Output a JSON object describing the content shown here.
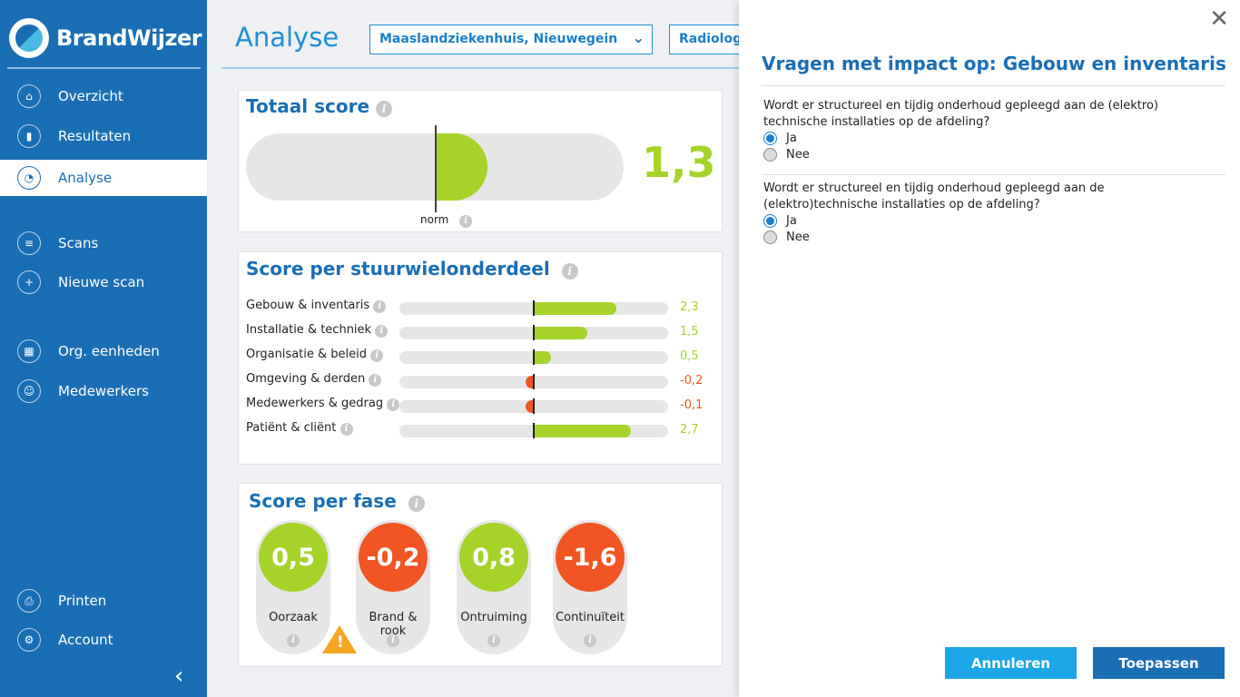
{
  "app": {
    "name": "BrandWijzer"
  },
  "sidebar": {
    "items": [
      {
        "label": "Overzicht",
        "icon": "home-icon"
      },
      {
        "label": "Resultaten",
        "icon": "bar-chart-icon"
      },
      {
        "label": "Analyse",
        "icon": "analysis-icon",
        "active": true
      },
      {
        "label": "Scans",
        "icon": "list-icon"
      },
      {
        "label": "Nieuwe scan",
        "icon": "plus-icon"
      },
      {
        "label": "Org. eenheden",
        "icon": "org-chart-icon"
      },
      {
        "label": "Medewerkers",
        "icon": "users-icon"
      },
      {
        "label": "Printen",
        "icon": "printer-icon"
      },
      {
        "label": "Account",
        "icon": "gear-icon"
      }
    ]
  },
  "header": {
    "title": "Analyse",
    "location_select": "Maaslandziekenhuis, Nieuwegein",
    "department_select": "Radiologie"
  },
  "totaal": {
    "title": "Totaal score",
    "value": "1,3",
    "norm_label": "norm",
    "bar_fraction": 0.64
  },
  "segments": {
    "title": "Score per stuurwielonderdeel",
    "rows": [
      {
        "label": "Gebouw & inventaris",
        "value": "2,3",
        "score": 2.3
      },
      {
        "label": "Installatie & techniek",
        "value": "1,5",
        "score": 1.5
      },
      {
        "label": "Organisatie & beleid",
        "value": "0,5",
        "score": 0.5
      },
      {
        "label": "Omgeving & derden",
        "value": "-0,2",
        "score": -0.2
      },
      {
        "label": "Medewerkers & gedrag",
        "value": "-0,1",
        "score": -0.1
      },
      {
        "label": "Patiënt & cliënt",
        "value": "2,7",
        "score": 2.7
      }
    ]
  },
  "fases": {
    "title": "Score per fase",
    "items": [
      {
        "label": "Oorzaak",
        "value": "0,5",
        "status": "positive"
      },
      {
        "label": "Brand & rook",
        "value": "-0,2",
        "status": "negative"
      },
      {
        "label": "Ontruiming",
        "value": "0,8",
        "status": "positive"
      },
      {
        "label": "Continuïteit",
        "value": "-1,6",
        "status": "negative"
      }
    ]
  },
  "panel": {
    "title": "Vragen met impact op: Gebouw en inventaris",
    "questions": [
      {
        "text": "Wordt er structureel en tijdig onderhoud gepleegd aan de (elektro) technische installaties op de afdeling?",
        "options": [
          "Ja",
          "Nee"
        ],
        "selected": "Ja"
      },
      {
        "text": "Wordt er structureel en tijdig onderhoud gepleegd aan de (elektro)technische installaties op de afdeling?",
        "options": [
          "Ja",
          "Nee"
        ],
        "selected": "Ja"
      }
    ],
    "cancel_label": "Annuleren",
    "apply_label": "Toepassen"
  },
  "colors": {
    "brand": "#1a6eb4",
    "positive": "#a5d32a",
    "negative": "#f05523",
    "warning": "#f5a623",
    "cancel_button": "#1da7e8",
    "apply_button": "#1a6eb4"
  }
}
